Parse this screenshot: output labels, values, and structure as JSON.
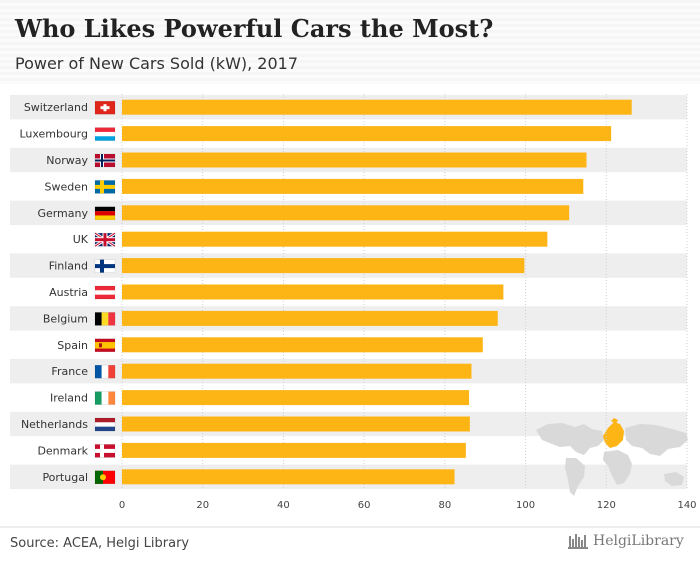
{
  "header": {
    "title": "Who Likes Powerful Cars the Most?",
    "subtitle": "Power of New Cars Sold (kW), 2017"
  },
  "footer": {
    "source": "Source: ACEA, Helgi Library",
    "brand": "HelgiLibrary"
  },
  "colors": {
    "bar": "#fdb515",
    "row_shade": "#eeeeee",
    "map_land": "#d9d9d9",
    "map_highlight": "#fdb515"
  },
  "chart_data": {
    "type": "bar",
    "orientation": "horizontal",
    "title": "Who Likes Powerful Cars the Most?",
    "subtitle": "Power of New Cars Sold (kW), 2017",
    "categories": [
      "Switzerland",
      "Luxembourg",
      "Norway",
      "Sweden",
      "Germany",
      "UK",
      "Finland",
      "Austria",
      "Belgium",
      "Spain",
      "France",
      "Ireland",
      "Netherlands",
      "Denmark",
      "Portugal"
    ],
    "flags": [
      "swiss-flag",
      "luxembourg-flag",
      "norway-flag",
      "sweden-flag",
      "germany-flag",
      "uk-flag",
      "finland-flag",
      "austria-flag",
      "belgium-flag",
      "spain-flag",
      "france-flag",
      "ireland-flag",
      "netherlands-flag",
      "denmark-flag",
      "portugal-flag"
    ],
    "values": [
      126.3,
      121.2,
      115.1,
      114.3,
      110.8,
      105.4,
      99.7,
      94.5,
      93.1,
      89.4,
      86.6,
      86.0,
      86.2,
      85.2,
      82.4
    ],
    "xlim": [
      0,
      140
    ],
    "ticks": [
      "0",
      "20",
      "40",
      "60",
      "80",
      "100",
      "120",
      "140"
    ],
    "xlabel": "",
    "ylabel": "",
    "grid": "vertical-dotted"
  }
}
